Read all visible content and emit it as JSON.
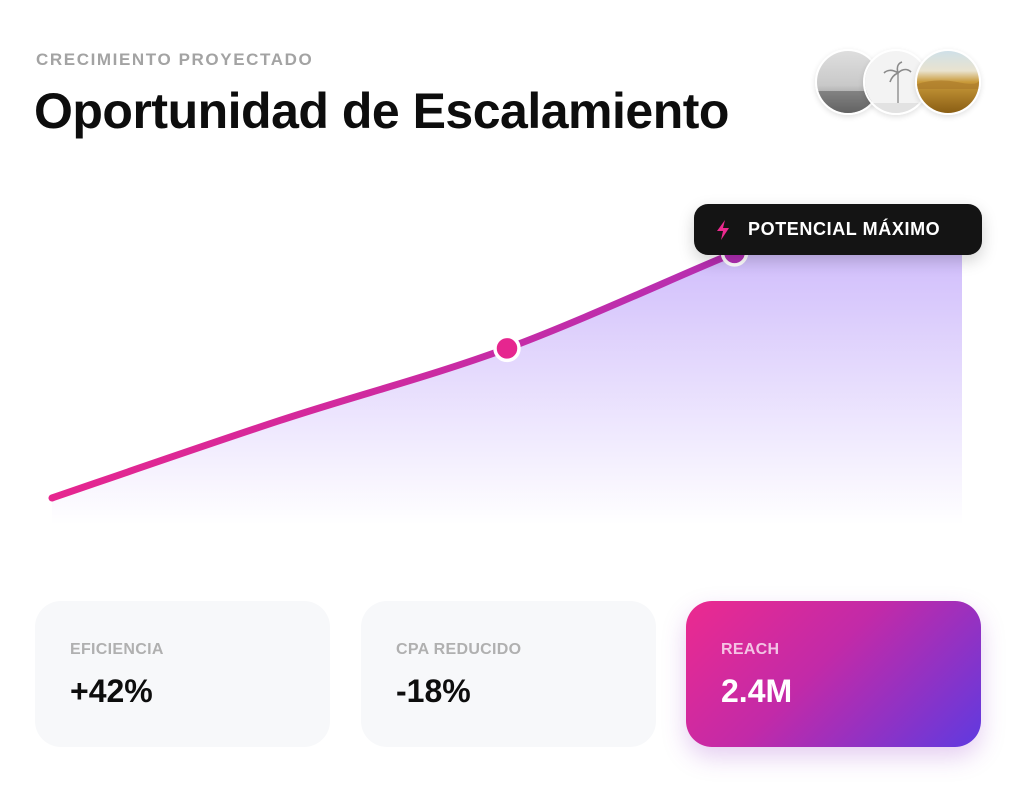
{
  "header": {
    "eyebrow": "CRECIMIENTO PROYECTADO",
    "title": "Oportunidad de Escalamiento"
  },
  "avatars": [
    {
      "name": "gray-landscape-avatar"
    },
    {
      "name": "palm-tree-avatar"
    },
    {
      "name": "desert-field-avatar"
    }
  ],
  "badge": {
    "label": "POTENCIAL MÁXIMO",
    "icon": "lightning-bolt-icon"
  },
  "chart_data": {
    "type": "area",
    "series": [
      {
        "x": [
          0,
          0.25,
          0.5,
          0.75,
          0.8
        ],
        "values": [
          0,
          0.3,
          0.58,
          0.95,
          1.0
        ]
      }
    ],
    "highlighted_points": [
      0.5,
      0.75
    ],
    "colors": {
      "line_start": "#e6268f",
      "line_end": "#b22fb4",
      "fill": "#8b5cf6"
    }
  },
  "stats": [
    {
      "label": "EFICIENCIA",
      "value": "+42%"
    },
    {
      "label": "CPA REDUCIDO",
      "value": "-18%"
    },
    {
      "label": "REACH",
      "value": "2.4M"
    }
  ],
  "colors": {
    "accent_pink": "#ec2a8f",
    "accent_purple": "#5f3ae0",
    "badge_bg": "#141414"
  }
}
